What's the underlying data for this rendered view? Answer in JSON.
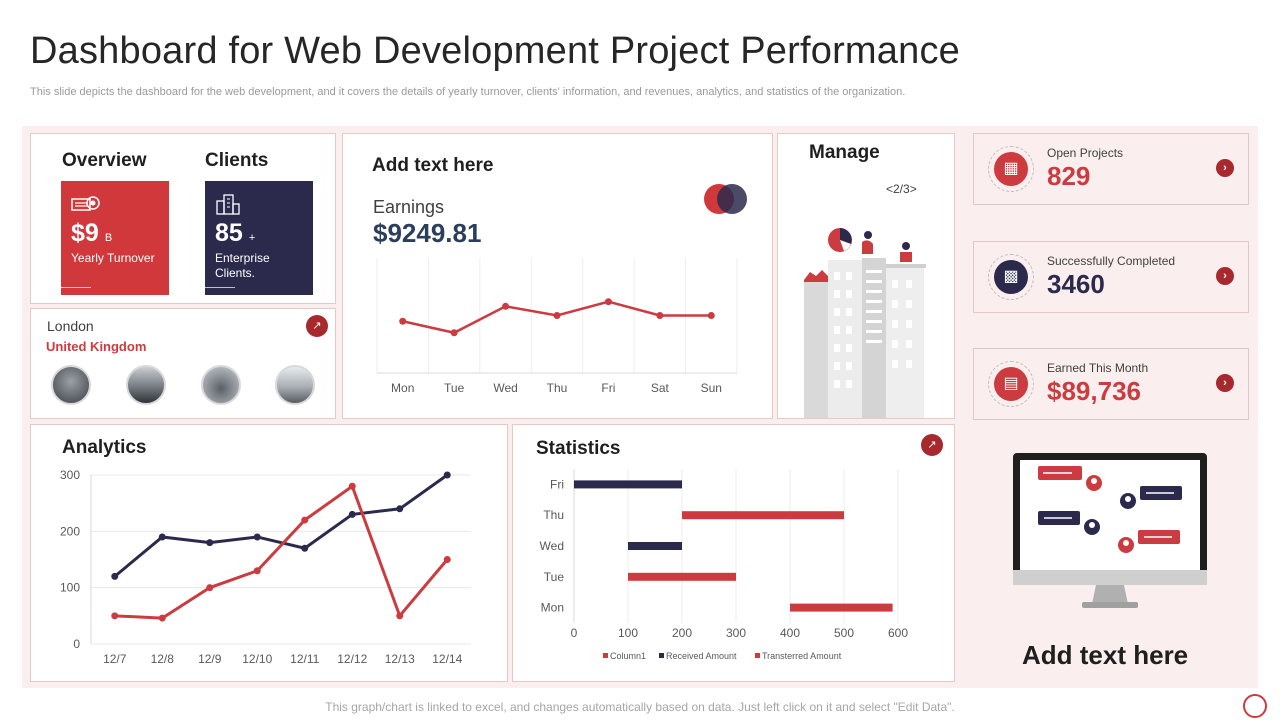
{
  "header": {
    "title": "Dashboard for Web Development Project Performance",
    "subtitle": "This slide depicts the dashboard for the web development, and it covers the details of yearly turnover, clients' information, and revenues, analytics, and statistics of the organization."
  },
  "overview": {
    "heading": "Overview",
    "value": "$9",
    "unit": "B",
    "label": "Yearly Turnover",
    "color": "#d1383c",
    "icon": "money-icon"
  },
  "clients": {
    "heading": "Clients",
    "value": "85",
    "unit": "+",
    "label": "Enterprise Clients.",
    "color": "#2b2a4c",
    "icon": "building-icon"
  },
  "location": {
    "city": "London",
    "country": "United Kingdom",
    "icon": "arrow-up-right-icon"
  },
  "earnings_card": {
    "heading": "Add text here",
    "label": "Earnings",
    "value": "$9249.81"
  },
  "manage": {
    "heading": "Manage",
    "pager": "<2/3>"
  },
  "kpis": [
    {
      "label": "Open Projects",
      "value": "829",
      "color": "#cc3b3f",
      "icon": "office-building-icon"
    },
    {
      "label": "Successfully Completed",
      "value": "3460",
      "color": "#2b2a4c",
      "icon": "chart-bars-icon"
    },
    {
      "label": "Earned This Month",
      "value": "$89,736",
      "color": "#cc3b3f",
      "icon": "invoice-icon"
    }
  ],
  "side_caption": "Add text here",
  "footer": "This graph/chart is linked to excel, and changes automatically based on data. Just left click on it and select \"Edit Data\".",
  "chart_data": [
    {
      "type": "line",
      "categories": [
        "Mon",
        "Tue",
        "Wed",
        "Thu",
        "Fri",
        "Sat",
        "Sun"
      ],
      "series": [
        {
          "values": [
            45,
            35,
            58,
            50,
            62,
            50,
            50
          ]
        }
      ],
      "ylim": [
        0,
        100
      ],
      "grid": true,
      "color": "#cc3b3f"
    },
    {
      "type": "line",
      "title": "Analytics",
      "categories": [
        "12/7",
        "12/8",
        "12/9",
        "12/10",
        "12/11",
        "12/12",
        "12/13",
        "12/14"
      ],
      "series": [
        {
          "values": [
            120,
            190,
            180,
            190,
            170,
            230,
            240,
            300
          ],
          "color": "#2b2a4c"
        },
        {
          "values": [
            50,
            46,
            100,
            130,
            220,
            280,
            50,
            150
          ],
          "color": "#cc3b3f"
        }
      ],
      "yticks": [
        0,
        100,
        200,
        300
      ],
      "ylim": [
        0,
        300
      ],
      "grid": true
    },
    {
      "type": "bar",
      "title": "Statistics",
      "orientation": "horizontal-gantt",
      "categories": [
        "Fri",
        "Thu",
        "Wed",
        "Tue",
        "Mon"
      ],
      "series": [
        {
          "name": "Column1",
          "values": [
            0,
            200,
            100,
            100,
            400
          ]
        },
        {
          "name": "Received Amount",
          "values": [
            200,
            0,
            100,
            0,
            0
          ],
          "color": "#2b2a4c"
        },
        {
          "name": "Transterred Amount",
          "values": [
            0,
            300,
            0,
            200,
            190
          ],
          "color": "#cc3b3f"
        }
      ],
      "xticks": [
        0,
        100,
        200,
        300,
        400,
        500,
        600
      ],
      "xlim": [
        0,
        600
      ],
      "legend": "bottom"
    }
  ]
}
